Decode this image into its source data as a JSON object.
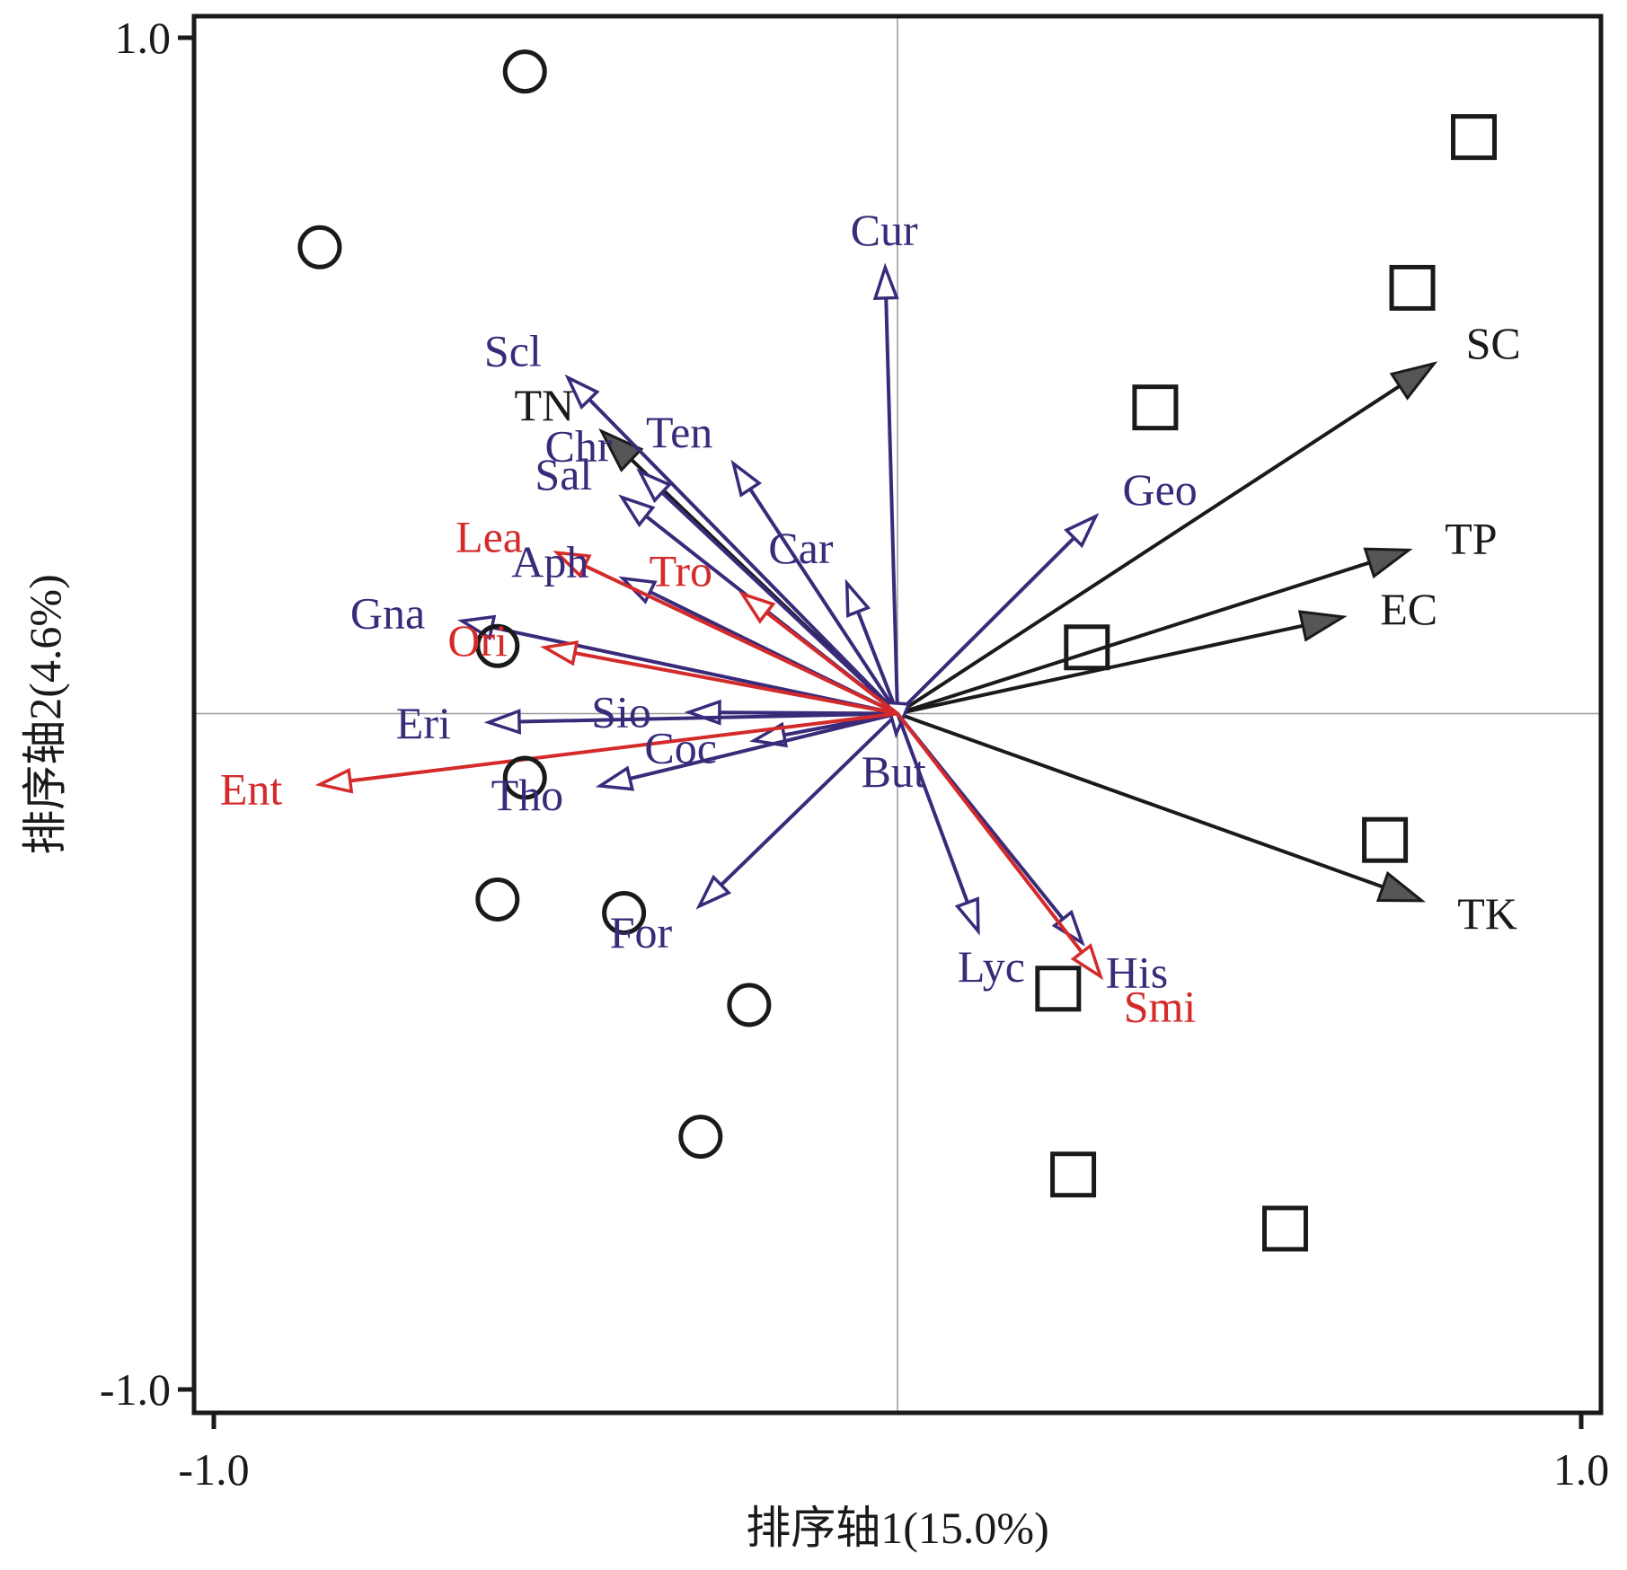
{
  "chart_data": {
    "type": "scatter",
    "subtype": "ordination-biplot",
    "title": "",
    "xlabel": "排序轴1(15.0%)",
    "ylabel": "排序轴2(4.6%)",
    "xlim": [
      -1.0,
      1.0
    ],
    "ylim": [
      -1.0,
      1.0
    ],
    "x_ticks": [
      {
        "value": -1.0,
        "label": "-1.0"
      },
      {
        "value": 1.0,
        "label": "1.0"
      }
    ],
    "y_ticks": [
      {
        "value": 1.0,
        "label": "1.0"
      },
      {
        "value": -1.0,
        "label": "-1.0"
      }
    ],
    "reference_lines": {
      "x": 0,
      "y": 0
    },
    "grid": false,
    "legend": "none",
    "colors": {
      "environment": "#1a1a1a",
      "species": "#3a2a7a",
      "indicator_species": "#d42a2a",
      "sites": "#1a1a1a"
    },
    "sites": {
      "circle": [
        {
          "x": -0.545,
          "y": 0.95
        },
        {
          "x": -0.845,
          "y": 0.69
        },
        {
          "x": -0.585,
          "y": 0.1
        },
        {
          "x": -0.545,
          "y": -0.095
        },
        {
          "x": -0.585,
          "y": -0.275
        },
        {
          "x": -0.4,
          "y": -0.295
        },
        {
          "x": -0.217,
          "y": -0.431
        },
        {
          "x": -0.288,
          "y": -0.626
        }
      ],
      "square": [
        {
          "x": 0.843,
          "y": 0.853
        },
        {
          "x": 0.753,
          "y": 0.63
        },
        {
          "x": 0.377,
          "y": 0.453
        },
        {
          "x": 0.277,
          "y": 0.098
        },
        {
          "x": 0.713,
          "y": -0.187
        },
        {
          "x": 0.235,
          "y": -0.407
        },
        {
          "x": 0.257,
          "y": -0.682
        },
        {
          "x": 0.567,
          "y": -0.762
        }
      ]
    },
    "environment_vectors": [
      {
        "name": "SC",
        "x": 0.785,
        "y": 0.518
      },
      {
        "name": "TP",
        "x": 0.748,
        "y": 0.242
      },
      {
        "name": "EC",
        "x": 0.652,
        "y": 0.143
      },
      {
        "name": "TK",
        "x": 0.767,
        "y": -0.277
      },
      {
        "name": "TN",
        "x": -0.433,
        "y": 0.418
      }
    ],
    "species_vectors": [
      {
        "name": "Cur",
        "x": -0.018,
        "y": 0.66
      },
      {
        "name": "Scl",
        "x": -0.482,
        "y": 0.497
      },
      {
        "name": "Ten",
        "x": -0.24,
        "y": 0.37
      },
      {
        "name": "Chr",
        "x": -0.377,
        "y": 0.358
      },
      {
        "name": "Sal",
        "x": -0.403,
        "y": 0.32
      },
      {
        "name": "Car",
        "x": -0.074,
        "y": 0.193
      },
      {
        "name": "Geo",
        "x": 0.29,
        "y": 0.292
      },
      {
        "name": "Aph",
        "x": -0.402,
        "y": 0.2
      },
      {
        "name": "Gna",
        "x": -0.637,
        "y": 0.137
      },
      {
        "name": "Sio",
        "x": -0.305,
        "y": 0.002
      },
      {
        "name": "Eri",
        "x": -0.598,
        "y": -0.013
      },
      {
        "name": "Coc",
        "x": -0.21,
        "y": -0.04
      },
      {
        "name": "Tho",
        "x": -0.435,
        "y": -0.107
      },
      {
        "name": "For",
        "x": -0.29,
        "y": -0.285
      },
      {
        "name": "But",
        "x": -0.002,
        "y": -0.03
      },
      {
        "name": "Lyc",
        "x": 0.118,
        "y": -0.322
      },
      {
        "name": "His",
        "x": 0.27,
        "y": -0.339
      }
    ],
    "indicator_vectors": [
      {
        "name": "Lea",
        "x": -0.498,
        "y": 0.238
      },
      {
        "name": "Tro",
        "x": -0.227,
        "y": 0.177
      },
      {
        "name": "Ori",
        "x": -0.516,
        "y": 0.098
      },
      {
        "name": "Ent",
        "x": -0.845,
        "y": -0.105
      },
      {
        "name": "Smi",
        "x": 0.297,
        "y": -0.389
      }
    ]
  }
}
